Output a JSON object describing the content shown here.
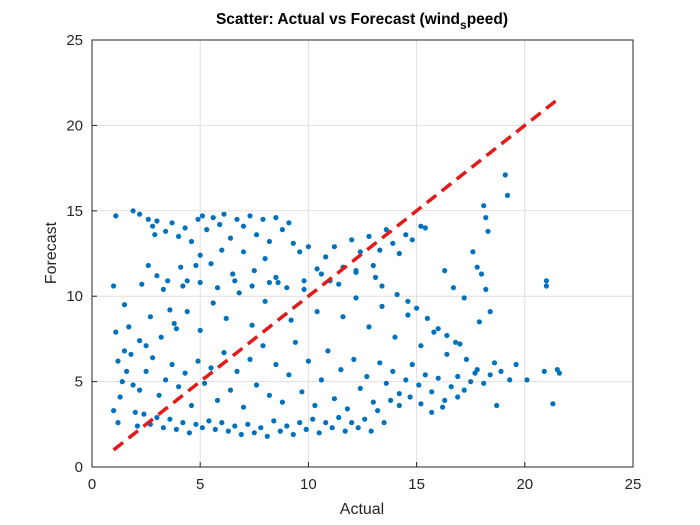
{
  "chart_data": {
    "type": "scatter",
    "title": {
      "prefix": "Scatter: Actual vs Forecast (wind",
      "subscript": "s",
      "suffix": "peed)"
    },
    "xlabel": "Actual",
    "ylabel": "Forecast",
    "xlim": [
      0,
      25
    ],
    "ylim": [
      0,
      25
    ],
    "xticks": [
      "0",
      "5",
      "10",
      "15",
      "20",
      "25"
    ],
    "yticks": [
      "0",
      "5",
      "10",
      "15",
      "20",
      "25"
    ],
    "grid": true,
    "point_color": "#0072bd",
    "reference_line": {
      "style": "dashed",
      "color": "#e21a1a",
      "x": [
        1,
        21.5
      ],
      "y": [
        1,
        21.5
      ]
    },
    "series": [
      {
        "points": [
          [
            1.1,
            14.7
          ],
          [
            1.0,
            10.6
          ],
          [
            1.1,
            7.9
          ],
          [
            1.2,
            6.2
          ],
          [
            1.4,
            5.0
          ],
          [
            1.3,
            4.1
          ],
          [
            1.0,
            3.3
          ],
          [
            1.2,
            2.6
          ],
          [
            1.5,
            9.5
          ],
          [
            1.7,
            8.2
          ],
          [
            1.8,
            6.6
          ],
          [
            1.9,
            4.8
          ],
          [
            2.0,
            3.2
          ],
          [
            2.1,
            2.4
          ],
          [
            2.3,
            10.7
          ],
          [
            2.5,
            7.1
          ],
          [
            1.9,
            15.0
          ],
          [
            2.2,
            14.8
          ],
          [
            2.6,
            14.5
          ],
          [
            2.8,
            14.1
          ],
          [
            3.0,
            14.4
          ],
          [
            2.9,
            13.6
          ],
          [
            3.4,
            13.8
          ],
          [
            3.7,
            14.3
          ],
          [
            2.6,
            11.8
          ],
          [
            3.0,
            11.2
          ],
          [
            3.3,
            10.4
          ],
          [
            3.6,
            9.2
          ],
          [
            3.9,
            8.1
          ],
          [
            4.1,
            11.7
          ],
          [
            4.4,
            10.9
          ],
          [
            4.8,
            11.8
          ],
          [
            4.0,
            13.5
          ],
          [
            4.3,
            14.0
          ],
          [
            4.6,
            13.2
          ],
          [
            4.9,
            14.5
          ],
          [
            5.1,
            14.7
          ],
          [
            5.3,
            13.9
          ],
          [
            5.6,
            14.6
          ],
          [
            5.9,
            14.2
          ],
          [
            6.1,
            14.8
          ],
          [
            6.4,
            13.4
          ],
          [
            6.7,
            14.5
          ],
          [
            7.0,
            14.1
          ],
          [
            7.3,
            14.7
          ],
          [
            7.6,
            13.6
          ],
          [
            7.9,
            14.5
          ],
          [
            8.2,
            13.2
          ],
          [
            8.5,
            14.6
          ],
          [
            8.8,
            13.9
          ],
          [
            9.1,
            14.3
          ],
          [
            9.3,
            13.1
          ],
          [
            9.6,
            12.6
          ],
          [
            10.0,
            12.9
          ],
          [
            10.4,
            11.6
          ],
          [
            10.8,
            12.3
          ],
          [
            5.0,
            12.4
          ],
          [
            5.5,
            11.9
          ],
          [
            6.0,
            12.7
          ],
          [
            6.5,
            11.3
          ],
          [
            7.0,
            12.6
          ],
          [
            7.5,
            11.5
          ],
          [
            8.0,
            12.2
          ],
          [
            8.5,
            11.1
          ],
          [
            11.2,
            12.9
          ],
          [
            11.6,
            11.7
          ],
          [
            12.0,
            13.3
          ],
          [
            12.4,
            12.6
          ],
          [
            12.8,
            13.5
          ],
          [
            13.0,
            11.8
          ],
          [
            13.3,
            12.7
          ],
          [
            13.6,
            13.9
          ],
          [
            13.9,
            13.1
          ],
          [
            14.2,
            12.5
          ],
          [
            14.5,
            13.6
          ],
          [
            14.8,
            13.3
          ],
          [
            15.2,
            14.1
          ],
          [
            15.4,
            14.0
          ],
          [
            13.1,
            11.1
          ],
          [
            12.2,
            11.4
          ],
          [
            13.4,
            10.6
          ],
          [
            14.1,
            10.1
          ],
          [
            14.6,
            9.7
          ],
          [
            15.0,
            9.3
          ],
          [
            15.5,
            8.7
          ],
          [
            16.0,
            8.1
          ],
          [
            16.4,
            7.7
          ],
          [
            16.8,
            7.3
          ],
          [
            16.3,
            11.5
          ],
          [
            16.7,
            10.5
          ],
          [
            17.2,
            9.9
          ],
          [
            17.6,
            12.6
          ],
          [
            17.8,
            11.7
          ],
          [
            17.3,
            6.3
          ],
          [
            17.7,
            5.5
          ],
          [
            18.1,
            15.3
          ],
          [
            18.2,
            14.6
          ],
          [
            18.3,
            13.8
          ],
          [
            18.0,
            11.3
          ],
          [
            18.4,
            9.1
          ],
          [
            18.6,
            6.1
          ],
          [
            18.9,
            5.6
          ],
          [
            19.1,
            17.1
          ],
          [
            19.2,
            15.9
          ],
          [
            18.7,
            3.6
          ],
          [
            19.3,
            5.1
          ],
          [
            19.6,
            6.0
          ],
          [
            20.1,
            5.1
          ],
          [
            20.9,
            5.6
          ],
          [
            21.0,
            10.9
          ],
          [
            21.0,
            10.6
          ],
          [
            21.3,
            3.7
          ],
          [
            21.5,
            5.7
          ],
          [
            21.6,
            5.5
          ],
          [
            17.9,
            8.5
          ],
          [
            18.2,
            10.4
          ],
          [
            16.9,
            4.1
          ],
          [
            16.2,
            3.5
          ],
          [
            15.7,
            3.2
          ],
          [
            15.2,
            3.7
          ],
          [
            14.7,
            4.1
          ],
          [
            14.2,
            3.6
          ],
          [
            13.8,
            3.9
          ],
          [
            13.5,
            2.6
          ],
          [
            13.2,
            3.3
          ],
          [
            12.9,
            2.1
          ],
          [
            12.6,
            2.8
          ],
          [
            12.3,
            2.3
          ],
          [
            12.0,
            2.6
          ],
          [
            11.7,
            2.1
          ],
          [
            11.4,
            2.9
          ],
          [
            11.1,
            2.3
          ],
          [
            10.8,
            2.6
          ],
          [
            10.5,
            2.0
          ],
          [
            10.2,
            2.8
          ],
          [
            9.9,
            2.2
          ],
          [
            9.6,
            2.6
          ],
          [
            9.3,
            1.9
          ],
          [
            9.0,
            2.4
          ],
          [
            8.7,
            2.1
          ],
          [
            8.4,
            2.7
          ],
          [
            8.1,
            1.8
          ],
          [
            7.8,
            2.3
          ],
          [
            7.5,
            2.0
          ],
          [
            7.2,
            2.5
          ],
          [
            6.9,
            1.9
          ],
          [
            6.6,
            2.4
          ],
          [
            6.3,
            2.1
          ],
          [
            6.0,
            2.6
          ],
          [
            5.7,
            2.2
          ],
          [
            5.4,
            2.7
          ],
          [
            5.1,
            2.3
          ],
          [
            4.8,
            2.5
          ],
          [
            4.5,
            2.0
          ],
          [
            4.2,
            2.6
          ],
          [
            3.9,
            2.2
          ],
          [
            3.6,
            2.8
          ],
          [
            3.3,
            2.3
          ],
          [
            3.0,
            2.9
          ],
          [
            2.7,
            2.5
          ],
          [
            2.4,
            3.1
          ],
          [
            2.2,
            4.5
          ],
          [
            2.5,
            5.6
          ],
          [
            2.8,
            6.4
          ],
          [
            3.1,
            4.2
          ],
          [
            3.4,
            5.1
          ],
          [
            3.7,
            6.0
          ],
          [
            4.0,
            4.7
          ],
          [
            4.3,
            5.5
          ],
          [
            4.6,
            3.6
          ],
          [
            4.9,
            6.2
          ],
          [
            5.2,
            4.9
          ],
          [
            5.5,
            5.8
          ],
          [
            5.8,
            3.9
          ],
          [
            6.1,
            6.7
          ],
          [
            6.4,
            4.5
          ],
          [
            6.7,
            5.6
          ],
          [
            7.0,
            3.5
          ],
          [
            7.3,
            6.3
          ],
          [
            7.6,
            4.8
          ],
          [
            7.9,
            7.1
          ],
          [
            8.2,
            4.2
          ],
          [
            8.5,
            6.0
          ],
          [
            8.8,
            3.8
          ],
          [
            9.1,
            5.4
          ],
          [
            9.4,
            7.3
          ],
          [
            9.7,
            4.4
          ],
          [
            10.0,
            6.2
          ],
          [
            10.3,
            3.6
          ],
          [
            10.6,
            5.1
          ],
          [
            10.9,
            6.8
          ],
          [
            11.2,
            4.0
          ],
          [
            11.5,
            5.7
          ],
          [
            11.8,
            3.4
          ],
          [
            12.1,
            6.3
          ],
          [
            12.4,
            4.6
          ],
          [
            12.7,
            5.3
          ],
          [
            13.0,
            3.8
          ],
          [
            13.3,
            6.1
          ],
          [
            13.6,
            4.9
          ],
          [
            13.9,
            5.6
          ],
          [
            14.2,
            4.3
          ],
          [
            14.5,
            5.1
          ],
          [
            14.8,
            6.0
          ],
          [
            15.1,
            4.8
          ],
          [
            15.4,
            5.4
          ],
          [
            15.7,
            4.4
          ],
          [
            16.0,
            5.2
          ],
          [
            16.3,
            3.9
          ],
          [
            16.6,
            4.7
          ],
          [
            16.9,
            5.3
          ],
          [
            17.2,
            4.5
          ],
          [
            17.5,
            5.0
          ],
          [
            17.8,
            5.7
          ],
          [
            18.1,
            4.9
          ],
          [
            18.4,
            5.4
          ],
          [
            3.2,
            7.6
          ],
          [
            3.8,
            8.4
          ],
          [
            4.4,
            9.1
          ],
          [
            5.0,
            8.0
          ],
          [
            5.6,
            9.6
          ],
          [
            6.2,
            8.7
          ],
          [
            6.8,
            10.2
          ],
          [
            7.4,
            8.3
          ],
          [
            8.0,
            9.7
          ],
          [
            8.6,
            10.8
          ],
          [
            9.2,
            8.6
          ],
          [
            9.8,
            10.4
          ],
          [
            10.4,
            9.1
          ],
          [
            11.0,
            10.9
          ],
          [
            11.6,
            8.8
          ],
          [
            12.2,
            9.9
          ],
          [
            12.8,
            8.2
          ],
          [
            13.4,
            9.4
          ],
          [
            14.0,
            7.6
          ],
          [
            14.6,
            8.9
          ],
          [
            15.2,
            7.1
          ],
          [
            15.8,
            7.9
          ],
          [
            16.4,
            6.6
          ],
          [
            17.0,
            7.2
          ],
          [
            3.5,
            10.9
          ],
          [
            4.2,
            10.6
          ],
          [
            5.0,
            10.8
          ],
          [
            5.8,
            10.5
          ],
          [
            6.6,
            10.9
          ],
          [
            7.4,
            10.6
          ],
          [
            8.2,
            10.8
          ],
          [
            9.0,
            10.5
          ],
          [
            9.8,
            10.9
          ],
          [
            10.6,
            11.3
          ],
          [
            11.4,
            10.7
          ],
          [
            12.2,
            11.5
          ],
          [
            2.2,
            7.4
          ],
          [
            2.7,
            8.8
          ],
          [
            1.5,
            6.8
          ],
          [
            1.6,
            5.6
          ]
        ]
      }
    ]
  }
}
